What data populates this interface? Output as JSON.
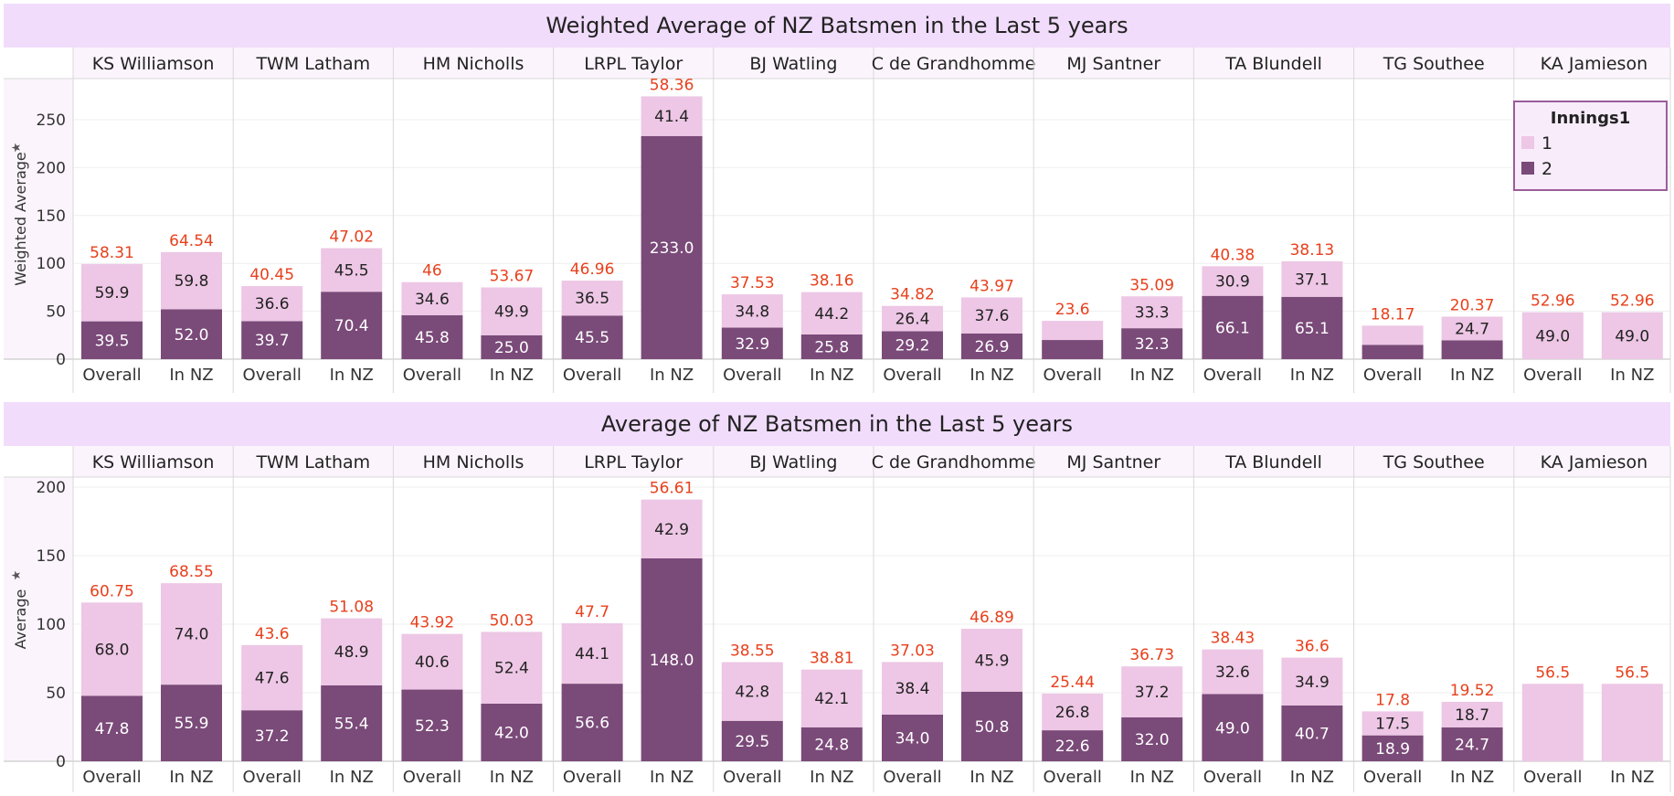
{
  "colors": {
    "title_band": "#f1dcfb",
    "header_band": "#fbf4fc",
    "plot_bg": "#ffffff",
    "series_1": "#edc7e5",
    "series_2": "#7a4a79",
    "total_label": "#e8401c",
    "separator": "#d8d8d8",
    "legend_border": "#9b5d9a",
    "legend_bg": "#f8ecfb"
  },
  "legend": {
    "title": "Innings1",
    "items": [
      {
        "label": "1",
        "color": "#edc7e5"
      },
      {
        "label": "2",
        "color": "#7a4a79"
      }
    ],
    "placement": "top-right"
  },
  "chart_data": [
    {
      "type": "bar",
      "stacked": true,
      "title": "Weighted Average of NZ Batsmen in the Last 5 years",
      "ylabel": "Weighted Average",
      "ylim": [
        0,
        285
      ],
      "yticks": [
        0,
        50,
        100,
        150,
        200,
        250
      ],
      "players": [
        "KS Williamson",
        "TWM Latham",
        "HM Nicholls",
        "LRPL Taylor",
        "BJ Watling",
        "C de Grandhomme",
        "MJ Santner",
        "TA Blundell",
        "TG Southee",
        "KA Jamieson"
      ],
      "categories": [
        "Overall",
        "In NZ"
      ],
      "series": [
        {
          "name": "2",
          "values": [
            [
              39.5,
              52.0
            ],
            [
              39.7,
              70.4
            ],
            [
              45.8,
              25.0
            ],
            [
              45.5,
              233.0
            ],
            [
              32.9,
              25.8
            ],
            [
              29.2,
              26.9
            ],
            [
              20.0,
              32.3
            ],
            [
              66.1,
              65.1
            ],
            [
              15.0,
              19.7
            ],
            [
              0,
              0
            ]
          ],
          "labels": [
            [
              "39.5",
              "52.0"
            ],
            [
              "39.7",
              "70.4"
            ],
            [
              "45.8",
              "25.0"
            ],
            [
              "45.5",
              "233.0"
            ],
            [
              "32.9",
              "25.8"
            ],
            [
              "29.2",
              "26.9"
            ],
            [
              "",
              "32.3"
            ],
            [
              "66.1",
              "65.1"
            ],
            [
              "",
              ""
            ],
            [
              "",
              ""
            ]
          ]
        },
        {
          "name": "1",
          "values": [
            [
              59.9,
              59.8
            ],
            [
              36.6,
              45.5
            ],
            [
              34.6,
              49.9
            ],
            [
              36.5,
              41.4
            ],
            [
              34.8,
              44.2
            ],
            [
              26.4,
              37.6
            ],
            [
              20.0,
              33.3
            ],
            [
              30.9,
              37.1
            ],
            [
              20.0,
              24.7
            ],
            [
              49.0,
              49.0
            ]
          ],
          "labels": [
            [
              "59.9",
              "59.8"
            ],
            [
              "36.6",
              "45.5"
            ],
            [
              "34.6",
              "49.9"
            ],
            [
              "36.5",
              "41.4"
            ],
            [
              "34.8",
              "44.2"
            ],
            [
              "26.4",
              "37.6"
            ],
            [
              "",
              "33.3"
            ],
            [
              "30.9",
              "37.1"
            ],
            [
              "",
              "24.7"
            ],
            [
              "49.0",
              "49.0"
            ]
          ]
        }
      ],
      "totals": [
        [
          "58.31",
          "64.54"
        ],
        [
          "40.45",
          "47.02"
        ],
        [
          "46",
          "53.67"
        ],
        [
          "46.96",
          "58.36"
        ],
        [
          "37.53",
          "38.16"
        ],
        [
          "34.82",
          "43.97"
        ],
        [
          "23.6",
          "35.09"
        ],
        [
          "40.38",
          "38.13"
        ],
        [
          "18.17",
          "20.37"
        ],
        [
          "52.96",
          "52.96"
        ]
      ]
    },
    {
      "type": "bar",
      "stacked": true,
      "title": "Average of NZ Batsmen in the Last 5 years",
      "ylabel": "Average",
      "ylim": [
        0,
        205
      ],
      "yticks": [
        0,
        50,
        100,
        150,
        200
      ],
      "players": [
        "KS Williamson",
        "TWM Latham",
        "HM Nicholls",
        "LRPL Taylor",
        "BJ Watling",
        "C de Grandhomme",
        "MJ Santner",
        "TA Blundell",
        "TG Southee",
        "KA Jamieson"
      ],
      "categories": [
        "Overall",
        "In NZ"
      ],
      "series": [
        {
          "name": "2",
          "values": [
            [
              47.8,
              55.9
            ],
            [
              37.2,
              55.4
            ],
            [
              52.3,
              42.0
            ],
            [
              56.6,
              148.0
            ],
            [
              29.5,
              24.8
            ],
            [
              34.0,
              50.8
            ],
            [
              22.6,
              32.0
            ],
            [
              49.0,
              40.7
            ],
            [
              18.9,
              24.7
            ],
            [
              0,
              0
            ]
          ],
          "labels": [
            [
              "47.8",
              "55.9"
            ],
            [
              "37.2",
              "55.4"
            ],
            [
              "52.3",
              "42.0"
            ],
            [
              "56.6",
              "148.0"
            ],
            [
              "29.5",
              "24.8"
            ],
            [
              "34.0",
              "50.8"
            ],
            [
              "22.6",
              "32.0"
            ],
            [
              "49.0",
              "40.7"
            ],
            [
              "18.9",
              "24.7"
            ],
            [
              "",
              ""
            ]
          ]
        },
        {
          "name": "1",
          "values": [
            [
              68.0,
              74.0
            ],
            [
              47.6,
              48.9
            ],
            [
              40.6,
              52.4
            ],
            [
              44.1,
              42.9
            ],
            [
              42.8,
              42.1
            ],
            [
              38.4,
              45.9
            ],
            [
              26.8,
              37.2
            ],
            [
              32.6,
              34.9
            ],
            [
              17.5,
              18.7
            ],
            [
              56.5,
              56.5
            ]
          ],
          "labels": [
            [
              "68.0",
              "74.0"
            ],
            [
              "47.6",
              "48.9"
            ],
            [
              "40.6",
              "52.4"
            ],
            [
              "44.1",
              "42.9"
            ],
            [
              "42.8",
              "42.1"
            ],
            [
              "38.4",
              "45.9"
            ],
            [
              "26.8",
              "37.2"
            ],
            [
              "32.6",
              "34.9"
            ],
            [
              "17.5",
              "18.7"
            ],
            [
              "",
              ""
            ]
          ]
        }
      ],
      "totals": [
        [
          "60.75",
          "68.55"
        ],
        [
          "43.6",
          "51.08"
        ],
        [
          "43.92",
          "50.03"
        ],
        [
          "47.7",
          "56.61"
        ],
        [
          "38.55",
          "38.81"
        ],
        [
          "37.03",
          "46.89"
        ],
        [
          "25.44",
          "36.73"
        ],
        [
          "38.43",
          "36.6"
        ],
        [
          "17.8",
          "19.52"
        ],
        [
          "56.5",
          "56.5"
        ]
      ]
    }
  ]
}
